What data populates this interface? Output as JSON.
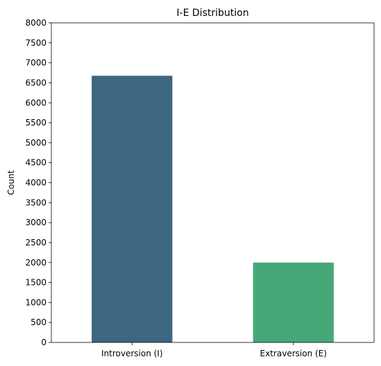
{
  "chart_data": {
    "type": "bar",
    "title": "I-E Distribution",
    "xlabel": "",
    "ylabel": "Count",
    "categories": [
      "Introversion (I)",
      "Extraversion (E)"
    ],
    "values": [
      6676,
      1999
    ],
    "colors": [
      "#3e6680",
      "#46a878"
    ],
    "ylim": [
      0,
      8000
    ],
    "yticks": [
      0,
      500,
      1000,
      1500,
      2000,
      2500,
      3000,
      3500,
      4000,
      4500,
      5000,
      5500,
      6000,
      6500,
      7000,
      7500,
      8000
    ],
    "grid": false,
    "legend": "none"
  }
}
